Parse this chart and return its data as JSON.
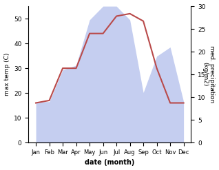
{
  "months": [
    "Jan",
    "Feb",
    "Mar",
    "Apr",
    "May",
    "Jun",
    "Jul",
    "Aug",
    "Sep",
    "Oct",
    "Nov",
    "Dec"
  ],
  "temperature": [
    16,
    17,
    30,
    30,
    44,
    44,
    51,
    52,
    49,
    30,
    16,
    16
  ],
  "precipitation": [
    9,
    9,
    16,
    17,
    27,
    30,
    30,
    27,
    11,
    19,
    21,
    9
  ],
  "temp_color": "#b94a4a",
  "precip_color_fill": "#c5cef0",
  "ylabel_left": "max temp (C)",
  "ylabel_right": "med. precipitation\n(kg/m2)",
  "xlabel": "date (month)",
  "ylim_left": [
    0,
    55
  ],
  "ylim_right": [
    0,
    30
  ],
  "yticks_left": [
    0,
    10,
    20,
    30,
    40,
    50
  ],
  "yticks_right": [
    0,
    5,
    10,
    15,
    20,
    25,
    30
  ],
  "background_color": "#ffffff"
}
